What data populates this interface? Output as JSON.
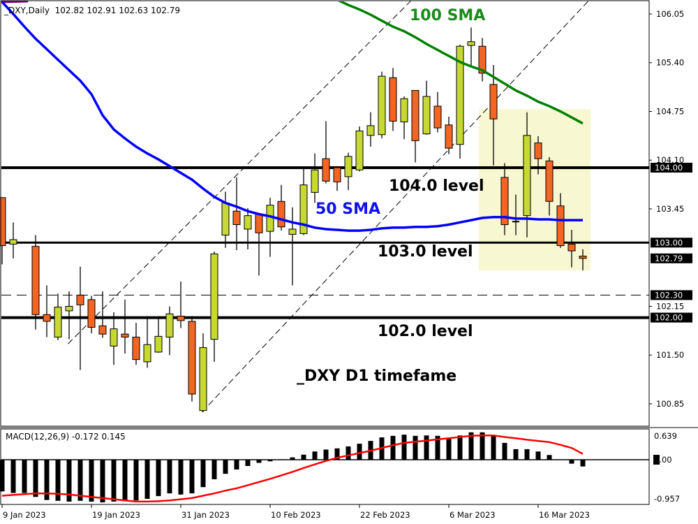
{
  "header": {
    "symbol": "_DXY,Daily",
    "ohlc": "102.82 102.91 102.63 102.79"
  },
  "macd_label": {
    "name": "MACD(12,26,9)",
    "values": "-0.172 0.145"
  },
  "annotations": {
    "sma100": "100 SMA",
    "sma50": "50 SMA",
    "level104": "104.0 level",
    "level103": "103.0 level",
    "level102": "102.0 level",
    "title": "_DXY D1 timefame"
  },
  "colors": {
    "bull": "#c5d932",
    "bear": "#f26522",
    "sma50": "#0000ff",
    "sma100": "#008000",
    "signal": "#ff0000",
    "zone": "#f7f7d2",
    "level": "#000000"
  },
  "chart_data": [
    {
      "type": "candlestick",
      "title": "_DXY,Daily",
      "ylim": [
        100.7,
        106.24
      ],
      "y_ticks": [
        "106.05",
        "105.40",
        "104.75",
        "104.10",
        "103.45",
        "102.15",
        "101.50",
        "100.85"
      ],
      "price_tags": [
        "104.00",
        "103.00",
        "102.79",
        "102.30",
        "102.00"
      ],
      "x_tick_labels": [
        {
          "index": 0,
          "label": "9 Jan 2023"
        },
        {
          "index": 8,
          "label": "19 Jan 2023"
        },
        {
          "index": 16,
          "label": "31 Jan 2023"
        },
        {
          "index": 24,
          "label": "10 Feb 2023"
        },
        {
          "index": 32,
          "label": "22 Feb 2023"
        },
        {
          "index": 40,
          "label": "6 Mar 2023"
        },
        {
          "index": 48,
          "label": "16 Mar 2023"
        }
      ],
      "candles_ohlc": [
        [
          103.6,
          103.6,
          102.71,
          102.96
        ],
        [
          102.98,
          103.27,
          102.79,
          103.04
        ],
        null,
        [
          102.95,
          103.1,
          101.84,
          102.04
        ],
        [
          102.04,
          102.43,
          101.74,
          101.95
        ],
        [
          101.74,
          102.32,
          101.7,
          102.14
        ],
        [
          102.09,
          102.35,
          101.71,
          102.15
        ],
        [
          102.3,
          102.68,
          101.3,
          102.17
        ],
        [
          102.24,
          102.29,
          101.79,
          101.87
        ],
        [
          101.89,
          102.35,
          101.73,
          101.78
        ],
        [
          101.62,
          102.07,
          101.37,
          101.85
        ],
        [
          101.78,
          102.24,
          101.52,
          101.74
        ],
        [
          101.74,
          101.93,
          101.37,
          101.44
        ],
        [
          101.41,
          102.02,
          101.33,
          101.64
        ],
        [
          101.54,
          102.02,
          101.53,
          101.75
        ],
        [
          101.74,
          102.15,
          101.5,
          102.05
        ],
        [
          102.02,
          102.48,
          101.86,
          101.96
        ],
        [
          101.95,
          102.02,
          100.88,
          100.98
        ],
        [
          100.76,
          101.79,
          100.74,
          101.6
        ],
        [
          101.71,
          102.88,
          101.41,
          102.85
        ],
        [
          103.1,
          103.68,
          102.93,
          103.53
        ],
        [
          103.42,
          103.87,
          102.9,
          103.24
        ],
        [
          103.18,
          103.46,
          102.91,
          103.36
        ],
        [
          103.38,
          103.39,
          102.56,
          103.13
        ],
        [
          103.15,
          103.6,
          102.81,
          103.5
        ],
        [
          103.55,
          103.77,
          103.16,
          103.21
        ],
        [
          103.11,
          103.47,
          102.43,
          103.18
        ],
        [
          103.12,
          103.99,
          103.1,
          103.77
        ],
        [
          103.67,
          104.19,
          103.53,
          103.97
        ],
        [
          104.12,
          104.62,
          103.79,
          103.82
        ],
        [
          104.0,
          104.02,
          103.69,
          103.81
        ],
        [
          103.88,
          104.2,
          103.7,
          104.15
        ],
        [
          103.97,
          104.55,
          103.95,
          104.49
        ],
        [
          104.43,
          104.74,
          104.28,
          104.56
        ],
        [
          104.44,
          105.28,
          104.39,
          105.22
        ],
        [
          105.2,
          105.33,
          104.49,
          104.62
        ],
        [
          104.61,
          104.95,
          104.38,
          104.92
        ],
        [
          105.03,
          105.03,
          104.07,
          104.36
        ],
        [
          104.45,
          105.16,
          104.44,
          104.95
        ],
        [
          104.82,
          105.01,
          104.47,
          104.53
        ],
        [
          104.57,
          104.68,
          104.18,
          104.26
        ],
        [
          104.31,
          105.64,
          104.12,
          105.62
        ],
        [
          105.63,
          105.87,
          105.35,
          105.68
        ],
        [
          105.62,
          105.73,
          105.15,
          105.26
        ],
        [
          105.11,
          105.37,
          104.03,
          104.65
        ],
        [
          103.87,
          104.06,
          103.1,
          103.24
        ],
        [
          103.28,
          103.64,
          103.1,
          103.27
        ],
        [
          103.36,
          104.74,
          103.07,
          104.43
        ],
        [
          104.33,
          104.42,
          103.91,
          104.12
        ],
        [
          104.09,
          104.14,
          103.36,
          103.55
        ],
        [
          103.49,
          103.66,
          102.93,
          102.96
        ],
        [
          102.98,
          103.17,
          102.67,
          102.89
        ],
        [
          102.82,
          102.91,
          102.63,
          102.79
        ]
      ],
      "series": [
        {
          "name": "50 SMA",
          "values": [
            106.21,
            106.05,
            105.88,
            105.72,
            105.58,
            105.44,
            105.3,
            105.16,
            104.98,
            104.7,
            104.51,
            104.39,
            104.28,
            104.19,
            104.11,
            104.02,
            103.93,
            103.84,
            103.72,
            103.61,
            103.53,
            103.48,
            103.42,
            103.38,
            103.35,
            103.31,
            103.27,
            103.24,
            103.2,
            103.18,
            103.17,
            103.16,
            103.16,
            103.17,
            103.19,
            103.2,
            103.2,
            103.21,
            103.21,
            103.22,
            103.24,
            103.27,
            103.3,
            103.33,
            103.34,
            103.34,
            103.32,
            103.32,
            103.31,
            103.31,
            103.3,
            103.3,
            103.3
          ]
        },
        {
          "name": "100 SMA",
          "values": [
            null,
            null,
            null,
            null,
            null,
            null,
            null,
            null,
            null,
            null,
            null,
            null,
            null,
            null,
            null,
            null,
            null,
            null,
            null,
            null,
            null,
            null,
            null,
            null,
            null,
            null,
            null,
            null,
            null,
            null,
            106.24,
            106.17,
            106.11,
            106.04,
            105.96,
            105.88,
            105.82,
            105.74,
            105.65,
            105.57,
            105.49,
            105.41,
            105.35,
            105.3,
            105.21,
            105.12,
            105.03,
            104.96,
            104.88,
            104.82,
            104.75,
            104.67,
            104.59
          ]
        }
      ],
      "horizontal_levels": [
        104.0,
        103.0,
        102.0
      ],
      "dashed_level": 102.3,
      "trendlines": [
        {
          "from": [
            5.9,
            101.65
          ],
          "to": [
            36.7,
            106.24
          ]
        },
        {
          "from": [
            17.9,
            100.74
          ],
          "to": [
            52.6,
            106.24
          ]
        }
      ],
      "highlight_zone": {
        "from_index": 43,
        "to_index": 53,
        "price_low": 102.63,
        "price_high": 104.78
      }
    },
    {
      "type": "bar+line",
      "title": "MACD(12,26,9)",
      "y_ticks": [
        "0.639",
        "0.00",
        "-0.957"
      ],
      "ylim": [
        -1.1,
        0.8
      ],
      "histogram": [
        -0.81,
        -0.85,
        -0.85,
        -0.95,
        -1.03,
        -1.05,
        -1.07,
        -1.05,
        -1.07,
        -1.09,
        -1.07,
        -1.06,
        -1.04,
        -1.0,
        -0.93,
        -0.86,
        -0.89,
        -0.86,
        -0.7,
        -0.5,
        -0.36,
        -0.25,
        -0.16,
        -0.08,
        -0.04,
        0.01,
        0.06,
        0.13,
        0.21,
        0.26,
        0.29,
        0.34,
        0.41,
        0.48,
        0.57,
        0.61,
        0.64,
        0.61,
        0.62,
        0.61,
        0.55,
        0.62,
        0.7,
        0.7,
        0.61,
        0.43,
        0.27,
        0.27,
        0.21,
        0.12,
        0.0,
        -0.1,
        -0.172
      ],
      "signal": [
        -0.92,
        -0.9,
        -0.88,
        -0.86,
        -0.86,
        -0.87,
        -0.89,
        -0.92,
        -0.95,
        -0.98,
        -1.01,
        -1.04,
        -1.07,
        -1.07,
        -1.06,
        -1.04,
        -1.01,
        -0.98,
        -0.92,
        -0.86,
        -0.79,
        -0.73,
        -0.65,
        -0.57,
        -0.49,
        -0.4,
        -0.31,
        -0.21,
        -0.12,
        -0.03,
        0.05,
        0.11,
        0.17,
        0.23,
        0.3,
        0.37,
        0.43,
        0.46,
        0.49,
        0.52,
        0.55,
        0.58,
        0.61,
        0.62,
        0.62,
        0.58,
        0.55,
        0.51,
        0.48,
        0.45,
        0.38,
        0.3,
        0.15
      ]
    }
  ]
}
